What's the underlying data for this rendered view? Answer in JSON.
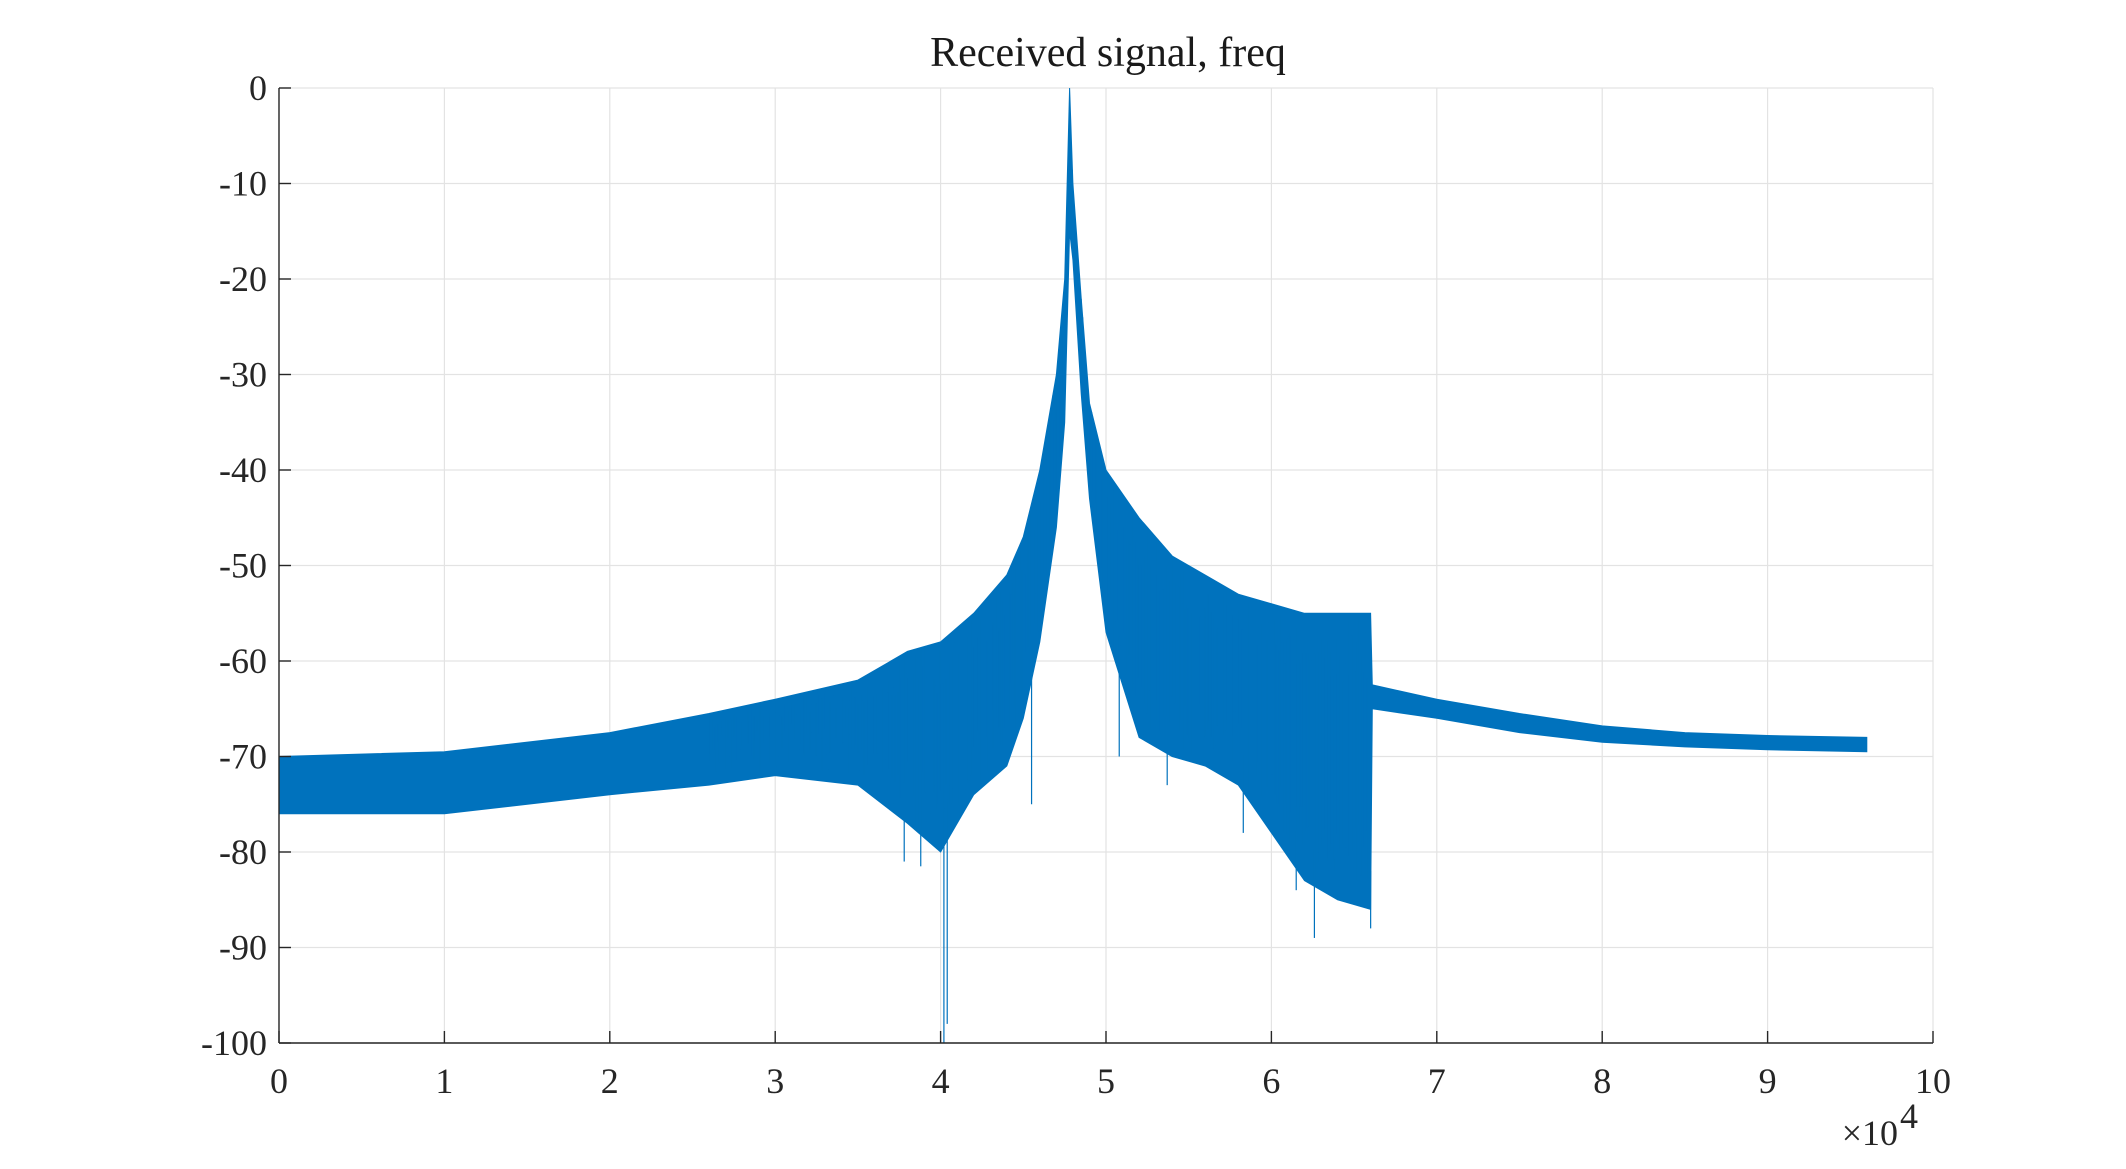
{
  "chart_data": {
    "type": "line",
    "title": "Received signal, freq",
    "xlabel": "",
    "ylabel": "",
    "xlim": [
      0,
      100000
    ],
    "ylim": [
      -100,
      0
    ],
    "x_ticks": [
      0,
      10000,
      20000,
      30000,
      40000,
      50000,
      60000,
      70000,
      80000,
      90000,
      100000
    ],
    "x_tick_labels": [
      "0",
      "1",
      "2",
      "3",
      "4",
      "5",
      "6",
      "7",
      "8",
      "9",
      "10"
    ],
    "x_exponent_label": "×10",
    "x_exponent_power": "4",
    "y_ticks": [
      0,
      -10,
      -20,
      -30,
      -40,
      -50,
      -60,
      -70,
      -80,
      -90,
      -100
    ],
    "y_tick_labels": [
      "0",
      "-10",
      "-20",
      "-30",
      "-40",
      "-50",
      "-60",
      "-70",
      "-80",
      "-90",
      "-100"
    ],
    "grid": true,
    "color": "#0072BD",
    "series": [
      {
        "x": [
          0,
          10000,
          20000,
          26000,
          30000,
          35000,
          38000,
          40000,
          42000,
          44000,
          45000,
          46000,
          47000,
          47500,
          47800,
          48000,
          48500,
          49000,
          50000,
          52000,
          54000,
          56000,
          58000,
          60000,
          62000,
          64000,
          66000,
          66100,
          70000,
          75000,
          80000,
          85000,
          90000,
          96000
        ],
        "upper": [
          -70,
          -69.5,
          -67.5,
          -65.5,
          -64,
          -62,
          -59,
          -58,
          -55,
          -51,
          -47,
          -40,
          -30,
          -20,
          0,
          -10,
          -22,
          -33,
          -40,
          -45,
          -49,
          -51,
          -53,
          -54,
          -55,
          -55,
          -55,
          -62.5,
          -64,
          -65.5,
          -66.8,
          -67.5,
          -67.8,
          -68
        ],
        "lower": [
          -76,
          -76,
          -74,
          -73,
          -72,
          -73,
          -77,
          -80,
          -74,
          -71,
          -66,
          -58,
          -46,
          -35,
          -15,
          -18,
          -32,
          -43,
          -57,
          -68,
          -70,
          -71,
          -73,
          -78,
          -83,
          -85,
          -86,
          -65,
          -66,
          -67.5,
          -68.5,
          -69,
          -69.3,
          -69.5
        ],
        "spikes": [
          {
            "x": 37800,
            "y": -81
          },
          {
            "x": 38800,
            "y": -81.5
          },
          {
            "x": 40200,
            "y": -100
          },
          {
            "x": 40400,
            "y": -98
          },
          {
            "x": 45500,
            "y": -75
          },
          {
            "x": 50800,
            "y": -70
          },
          {
            "x": 53700,
            "y": -73
          },
          {
            "x": 58300,
            "y": -78
          },
          {
            "x": 61500,
            "y": -84
          },
          {
            "x": 62600,
            "y": -89
          },
          {
            "x": 63800,
            "y": -82
          },
          {
            "x": 65200,
            "y": -83
          },
          {
            "x": 66000,
            "y": -88
          }
        ]
      }
    ]
  }
}
